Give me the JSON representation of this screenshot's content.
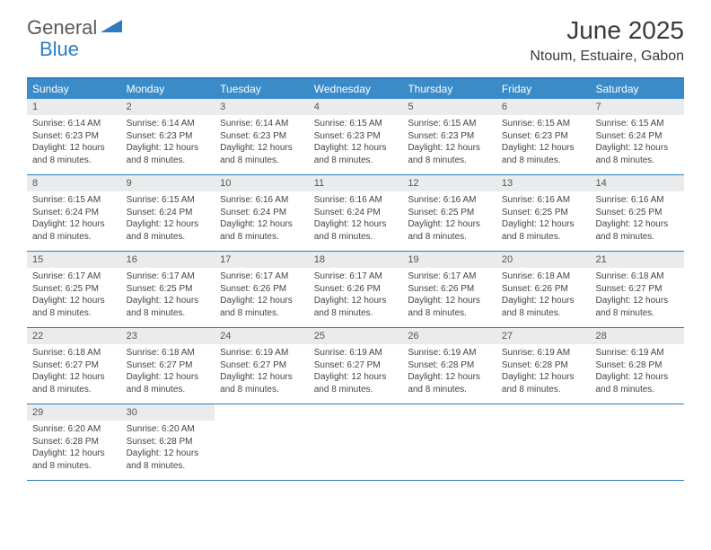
{
  "logo": {
    "text1": "General",
    "text2": "Blue"
  },
  "title": "June 2025",
  "location": "Ntoum, Estuaire, Gabon",
  "colors": {
    "header_bg": "#3b8bc9",
    "accent": "#2f7dc0",
    "daynum_bg": "#e9ebec",
    "text": "#333333"
  },
  "day_headers": [
    "Sunday",
    "Monday",
    "Tuesday",
    "Wednesday",
    "Thursday",
    "Friday",
    "Saturday"
  ],
  "weeks": [
    [
      {
        "n": "1",
        "sr": "6:14 AM",
        "ss": "6:23 PM",
        "dl": "12 hours and 8 minutes."
      },
      {
        "n": "2",
        "sr": "6:14 AM",
        "ss": "6:23 PM",
        "dl": "12 hours and 8 minutes."
      },
      {
        "n": "3",
        "sr": "6:14 AM",
        "ss": "6:23 PM",
        "dl": "12 hours and 8 minutes."
      },
      {
        "n": "4",
        "sr": "6:15 AM",
        "ss": "6:23 PM",
        "dl": "12 hours and 8 minutes."
      },
      {
        "n": "5",
        "sr": "6:15 AM",
        "ss": "6:23 PM",
        "dl": "12 hours and 8 minutes."
      },
      {
        "n": "6",
        "sr": "6:15 AM",
        "ss": "6:23 PM",
        "dl": "12 hours and 8 minutes."
      },
      {
        "n": "7",
        "sr": "6:15 AM",
        "ss": "6:24 PM",
        "dl": "12 hours and 8 minutes."
      }
    ],
    [
      {
        "n": "8",
        "sr": "6:15 AM",
        "ss": "6:24 PM",
        "dl": "12 hours and 8 minutes."
      },
      {
        "n": "9",
        "sr": "6:15 AM",
        "ss": "6:24 PM",
        "dl": "12 hours and 8 minutes."
      },
      {
        "n": "10",
        "sr": "6:16 AM",
        "ss": "6:24 PM",
        "dl": "12 hours and 8 minutes."
      },
      {
        "n": "11",
        "sr": "6:16 AM",
        "ss": "6:24 PM",
        "dl": "12 hours and 8 minutes."
      },
      {
        "n": "12",
        "sr": "6:16 AM",
        "ss": "6:25 PM",
        "dl": "12 hours and 8 minutes."
      },
      {
        "n": "13",
        "sr": "6:16 AM",
        "ss": "6:25 PM",
        "dl": "12 hours and 8 minutes."
      },
      {
        "n": "14",
        "sr": "6:16 AM",
        "ss": "6:25 PM",
        "dl": "12 hours and 8 minutes."
      }
    ],
    [
      {
        "n": "15",
        "sr": "6:17 AM",
        "ss": "6:25 PM",
        "dl": "12 hours and 8 minutes."
      },
      {
        "n": "16",
        "sr": "6:17 AM",
        "ss": "6:25 PM",
        "dl": "12 hours and 8 minutes."
      },
      {
        "n": "17",
        "sr": "6:17 AM",
        "ss": "6:26 PM",
        "dl": "12 hours and 8 minutes."
      },
      {
        "n": "18",
        "sr": "6:17 AM",
        "ss": "6:26 PM",
        "dl": "12 hours and 8 minutes."
      },
      {
        "n": "19",
        "sr": "6:17 AM",
        "ss": "6:26 PM",
        "dl": "12 hours and 8 minutes."
      },
      {
        "n": "20",
        "sr": "6:18 AM",
        "ss": "6:26 PM",
        "dl": "12 hours and 8 minutes."
      },
      {
        "n": "21",
        "sr": "6:18 AM",
        "ss": "6:27 PM",
        "dl": "12 hours and 8 minutes."
      }
    ],
    [
      {
        "n": "22",
        "sr": "6:18 AM",
        "ss": "6:27 PM",
        "dl": "12 hours and 8 minutes."
      },
      {
        "n": "23",
        "sr": "6:18 AM",
        "ss": "6:27 PM",
        "dl": "12 hours and 8 minutes."
      },
      {
        "n": "24",
        "sr": "6:19 AM",
        "ss": "6:27 PM",
        "dl": "12 hours and 8 minutes."
      },
      {
        "n": "25",
        "sr": "6:19 AM",
        "ss": "6:27 PM",
        "dl": "12 hours and 8 minutes."
      },
      {
        "n": "26",
        "sr": "6:19 AM",
        "ss": "6:28 PM",
        "dl": "12 hours and 8 minutes."
      },
      {
        "n": "27",
        "sr": "6:19 AM",
        "ss": "6:28 PM",
        "dl": "12 hours and 8 minutes."
      },
      {
        "n": "28",
        "sr": "6:19 AM",
        "ss": "6:28 PM",
        "dl": "12 hours and 8 minutes."
      }
    ],
    [
      {
        "n": "29",
        "sr": "6:20 AM",
        "ss": "6:28 PM",
        "dl": "12 hours and 8 minutes."
      },
      {
        "n": "30",
        "sr": "6:20 AM",
        "ss": "6:28 PM",
        "dl": "12 hours and 8 minutes."
      },
      null,
      null,
      null,
      null,
      null
    ]
  ],
  "labels": {
    "sunrise": "Sunrise:",
    "sunset": "Sunset:",
    "daylight": "Daylight:"
  }
}
